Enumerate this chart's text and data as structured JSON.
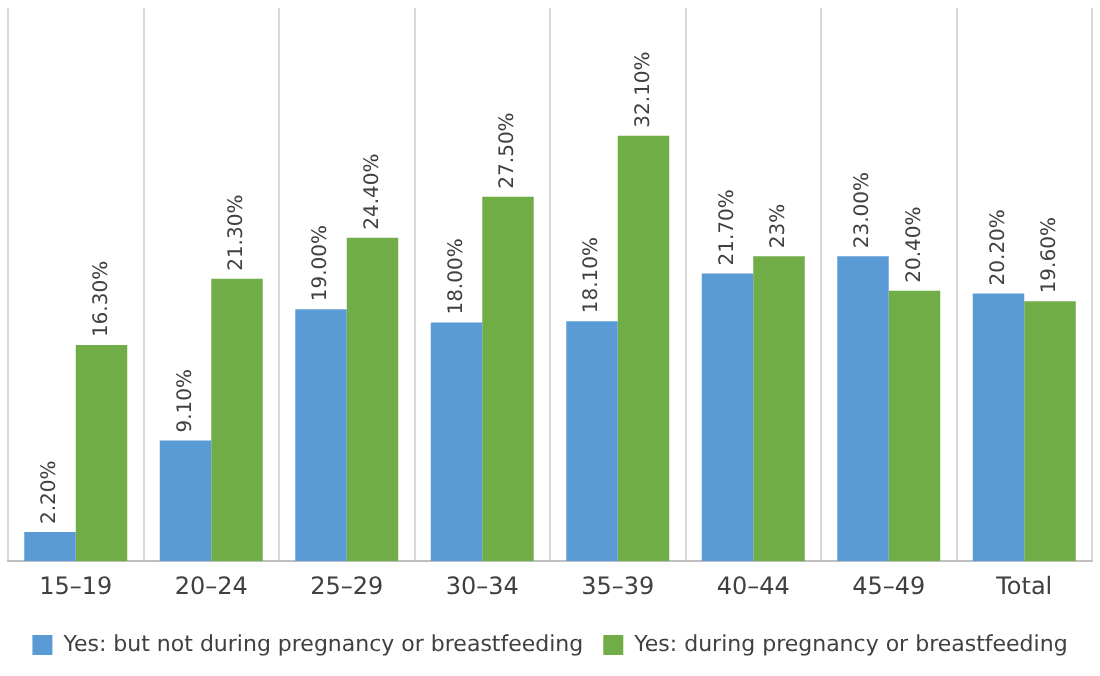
{
  "chart_data": {
    "type": "bar",
    "categories": [
      "15–19",
      "20–24",
      "25–29",
      "30–34",
      "35–39",
      "40–44",
      "45–49",
      "Total"
    ],
    "series": [
      {
        "name": "Yes: but not during pregnancy or breastfeeding",
        "color": "#5b9bd5",
        "values": [
          2.2,
          9.1,
          19.0,
          18.0,
          18.1,
          21.7,
          23.0,
          20.2
        ],
        "value_labels": [
          "2.20%",
          "9.10%",
          "19.00%",
          "18.00%",
          "18.10%",
          "21.70%",
          "23.00%",
          "20.20%"
        ]
      },
      {
        "name": "Yes: during pregnancy or breastfeeding",
        "color": "#70ad47",
        "values": [
          16.3,
          21.3,
          24.4,
          27.5,
          32.1,
          23,
          20.4,
          19.6
        ],
        "value_labels": [
          "16.30%",
          "21.30%",
          "24.40%",
          "27.50%",
          "32.10%",
          "23%",
          "20.40%",
          "19.60%"
        ]
      }
    ],
    "grid": "x",
    "legend": "bottom",
    "tick_labels": "x"
  }
}
